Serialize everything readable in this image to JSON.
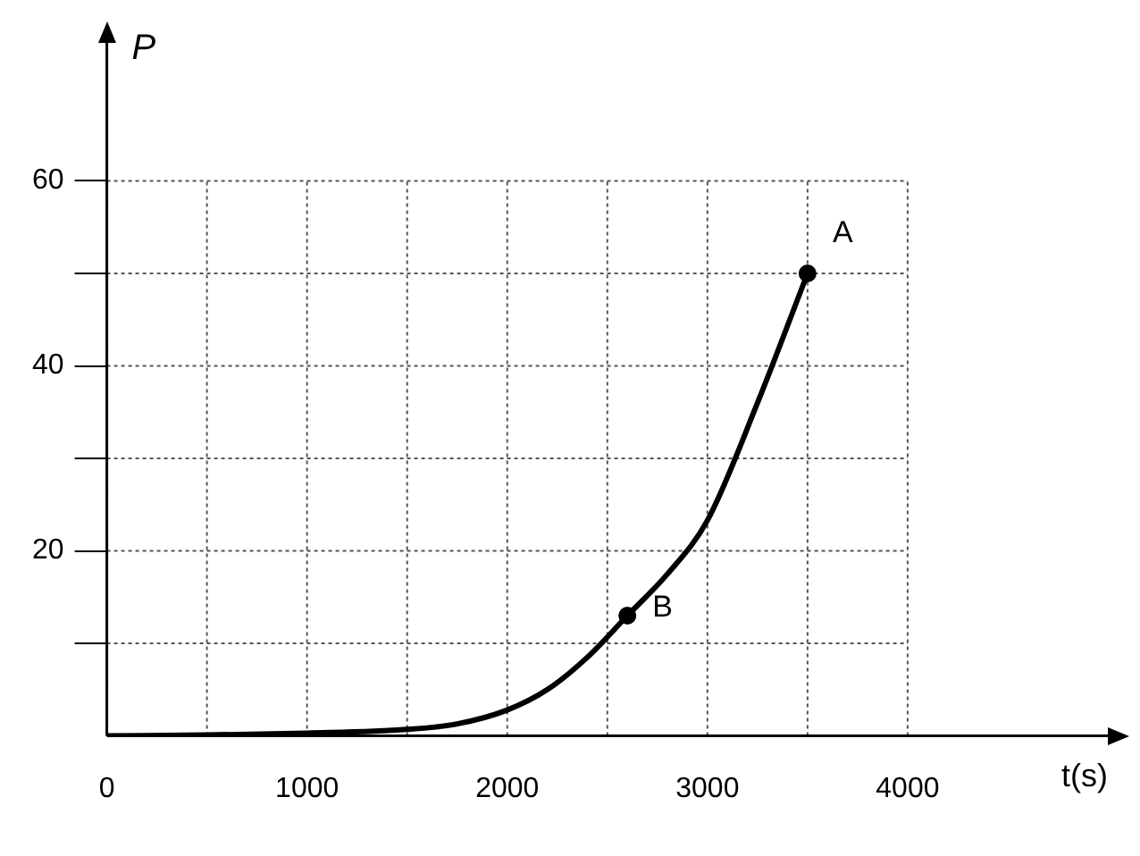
{
  "chart_data": {
    "type": "line",
    "xlabel": "t(s)",
    "ylabel": "P",
    "xlim": [
      0,
      5000
    ],
    "ylim": [
      0,
      75
    ],
    "xticks": [
      {
        "value": 0,
        "label": "0"
      },
      {
        "value": 500,
        "label": null
      },
      1000,
      {
        "value": 1500,
        "label": null
      },
      2000,
      {
        "value": 2500,
        "label": null
      },
      3000,
      {
        "value": 3500,
        "label": null
      },
      4000
    ],
    "yticks": [
      {
        "value": 10,
        "label": null
      },
      20,
      {
        "value": 30,
        "label": null
      },
      40,
      {
        "value": 50,
        "label": null
      },
      60
    ],
    "grid": true,
    "legend": false,
    "series": [
      {
        "color": "#000000",
        "marker": "none",
        "line_style": "solid",
        "x": [
          0,
          500,
          1000,
          1500,
          1750,
          2000,
          2200,
          2400,
          2600,
          2800,
          3000,
          3250,
          3500
        ],
        "values": [
          0,
          0.1,
          0.3,
          0.7,
          1.3,
          2.8,
          5,
          8.5,
          13,
          17.5,
          23.3,
          36,
          50
        ]
      },
      {
        "type": "scatter",
        "color": "#000000",
        "marker": "circle",
        "x": [
          2600,
          3500
        ],
        "values": [
          13,
          50
        ]
      }
    ],
    "annotations": [
      {
        "text": "B",
        "x": 2600,
        "y": 13
      },
      {
        "text": "A",
        "x": 3500,
        "y": 50
      }
    ]
  }
}
